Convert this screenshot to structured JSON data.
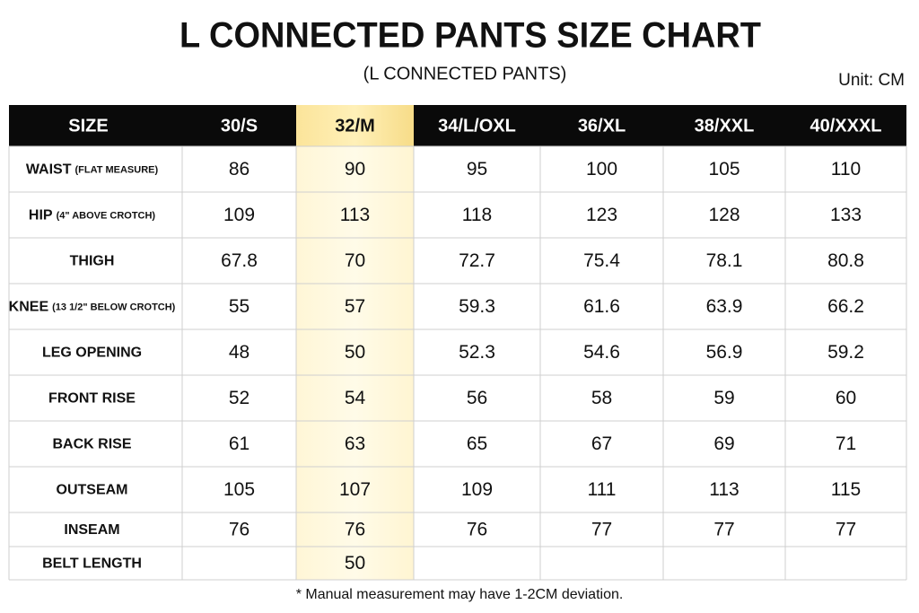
{
  "title": "L CONNECTED PANTS SIZE CHART",
  "subtitle": "(L CONNECTED PANTS)",
  "unit": "Unit: CM",
  "table": {
    "header": [
      "SIZE",
      "30/S",
      "32/M",
      "34/L/OXL",
      "36/XL",
      "38/XXL",
      "40/XXXL"
    ],
    "rows": [
      {
        "label": "WAIST",
        "note": "(FLAT MEASURE)",
        "values": [
          "86",
          "90",
          "95",
          "100",
          "105",
          "110"
        ]
      },
      {
        "label": "HIP",
        "note": "(4\" ABOVE CROTCH)",
        "values": [
          "109",
          "113",
          "118",
          "123",
          "128",
          "133"
        ]
      },
      {
        "label": "THIGH",
        "values": [
          "67.8",
          "70",
          "72.7",
          "75.4",
          "78.1",
          "80.8"
        ]
      },
      {
        "label": "KNEE",
        "note": "(13 1/2\" BELOW CROTCH)",
        "values": [
          "55",
          "57",
          "59.3",
          "61.6",
          "63.9",
          "66.2"
        ]
      },
      {
        "label": "LEG OPENING",
        "values": [
          "48",
          "50",
          "52.3",
          "54.6",
          "56.9",
          "59.2"
        ]
      },
      {
        "label": "FRONT RISE",
        "values": [
          "52",
          "54",
          "56",
          "58",
          "59",
          "60"
        ]
      },
      {
        "label": "BACK RISE",
        "values": [
          "61",
          "63",
          "65",
          "67",
          "69",
          "71"
        ]
      },
      {
        "label": "OUTSEAM",
        "values": [
          "105",
          "107",
          "109",
          "111",
          "113",
          "115"
        ]
      },
      {
        "label": "INSEAM",
        "values": [
          "76",
          "76",
          "76",
          "77",
          "77",
          "77"
        ]
      },
      {
        "label": "BELT LENGTH",
        "values": [
          null,
          "50",
          null,
          null,
          null,
          null
        ]
      }
    ]
  },
  "footnote": "* Manual measurement may have 1-2CM deviation."
}
